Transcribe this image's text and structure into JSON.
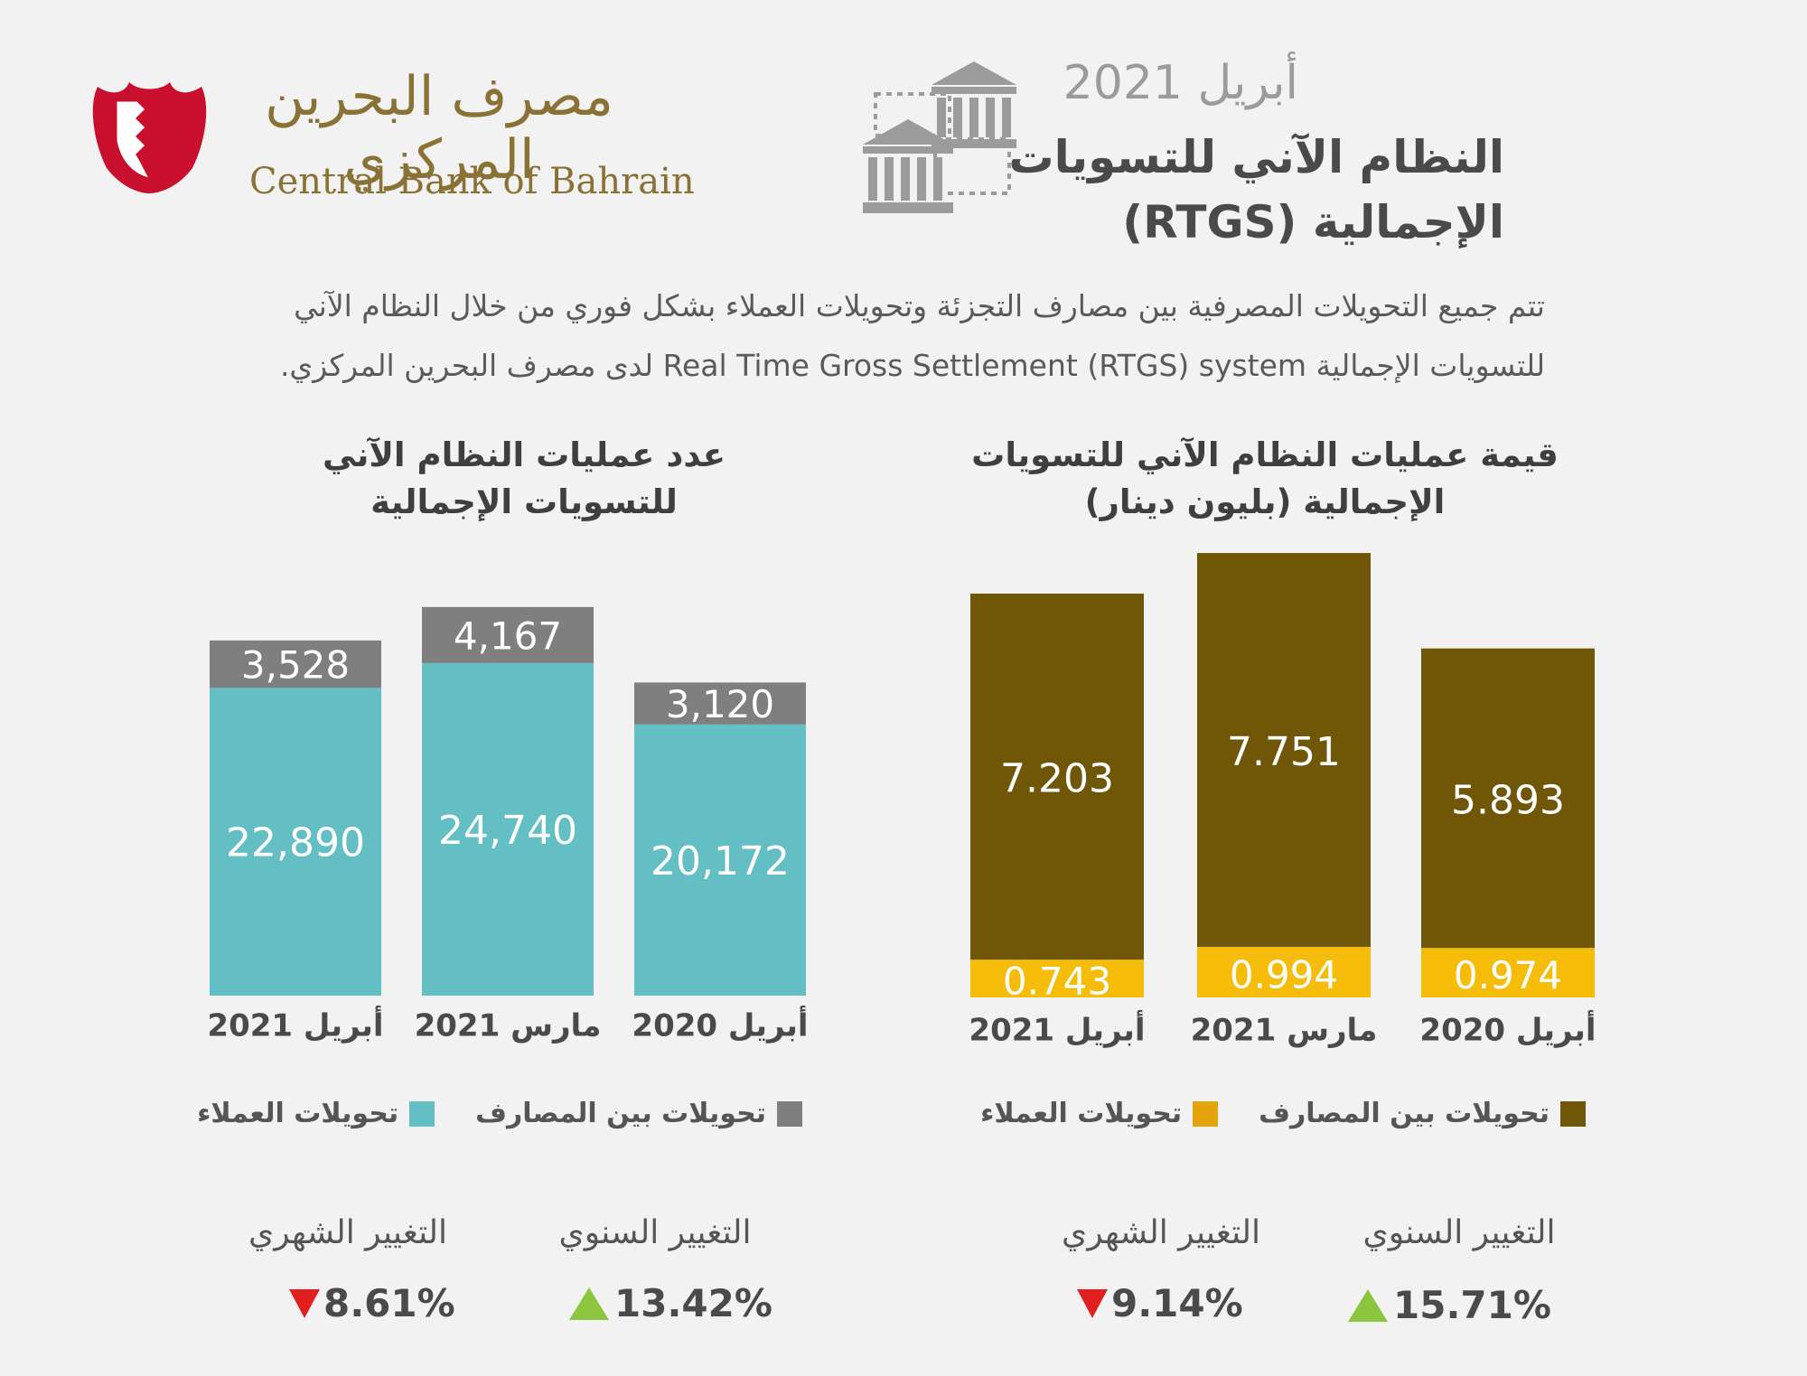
{
  "header": {
    "date": "أبريل 2021",
    "title_line1": "النظام الآني للتسويات",
    "title_line2": "الإجمالية (RTGS)",
    "logo_ar": "مصرف البحرين المركزي",
    "logo_en": "Central Bank of Bahrain"
  },
  "intro": {
    "line1": "تتم جميع التحويلات المصرفية بين مصارف التجزئة وتحويلات العملاء بشكل فوري من خلال النظام الآني",
    "line2": "للتسويات الإجمالية Real Time Gross Settlement (RTGS) system لدى مصرف البحرين المركزي."
  },
  "colors": {
    "teal": "#64bfc4",
    "gray": "#7f7f7f",
    "brown": "#705708",
    "gold": "#f5bd0a",
    "gold_legend": "#e3a40c",
    "up": "#8cc63f",
    "down": "#e02020"
  },
  "chart_data": [
    {
      "type": "bar",
      "stacked": true,
      "title": "عدد عمليات النظام الآني للتسويات الإجمالية",
      "categories": [
        "أبريل 2021",
        "مارس 2021",
        "أبريل 2020"
      ],
      "series": [
        {
          "name": "تحويلات العملاء",
          "values": [
            22890,
            24740,
            20172
          ],
          "labels": [
            "22,890",
            "24,740",
            "20,172"
          ]
        },
        {
          "name": "تحويلات بين المصارف",
          "values": [
            3528,
            4167,
            3120
          ],
          "labels": [
            "3,528",
            "4,167",
            "3,120"
          ]
        }
      ],
      "legend": "bottom",
      "grid": false
    },
    {
      "type": "bar",
      "stacked": true,
      "title": "قيمة عمليات النظام الآني للتسويات الإجمالية (بليون دينار)",
      "categories": [
        "أبريل 2021",
        "مارس 2021",
        "أبريل 2020"
      ],
      "series": [
        {
          "name": "تحويلات العملاء",
          "values": [
            0.743,
            0.994,
            0.974
          ],
          "labels": [
            "0.743",
            "0.994",
            "0.974"
          ]
        },
        {
          "name": "تحويلات بين المصارف",
          "values": [
            7.203,
            7.751,
            5.893
          ],
          "labels": [
            "7.203",
            "7.751",
            "5.893"
          ]
        }
      ],
      "legend": "bottom",
      "grid": false
    }
  ],
  "left_chart": {
    "title_line1": "عدد عمليات النظام الآني",
    "title_line2": "للتسويات الإجمالية",
    "legend_banks": "تحويلات بين المصارف",
    "legend_customers": "تحويلات العملاء",
    "annual_label": "التغيير السنوي",
    "annual_value": "13.42%",
    "monthly_label": "التغيير الشهري",
    "monthly_value": "8.61%"
  },
  "right_chart": {
    "title_line1": "قيمة عمليات النظام الآني للتسويات",
    "title_line2": "الإجمالية (بليون دينار)",
    "legend_banks": "تحويلات بين المصارف",
    "legend_customers": "تحويلات العملاء",
    "annual_label": "التغيير السنوي",
    "annual_value": "15.71%",
    "monthly_label": "التغيير الشهري",
    "monthly_value": "9.14%"
  }
}
